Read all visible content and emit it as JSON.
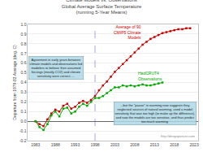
{
  "chart_data": {
    "type": "line",
    "title": "Climate Models vs. Observations\nGlobal Average Surface Temperature\n(running 5-Year Means)",
    "y_label": "Departure from 1979-83 Average (deg. C)",
    "xlim": [
      1981,
      2024
    ],
    "xticks": [
      1983,
      1988,
      1993,
      1998,
      2003,
      2008,
      2013,
      2018,
      2023
    ],
    "ylim": [
      -0.2,
      1.0
    ],
    "yticks": [
      -0.2,
      -0.1,
      {
        "value": 0.0,
        "label": "0.0"
      },
      0.1,
      0.2,
      0.3,
      0.4,
      0.5,
      0.6,
      0.7,
      0.8,
      0.9,
      {
        "value": 1.0,
        "label": "1.0"
      }
    ],
    "grid": true,
    "vline_x": 1998,
    "series": [
      {
        "name": "Average of 90\nCMIP5 Climate\nModels",
        "color": "#cc0000",
        "marker": "square",
        "x": [
          1983,
          1984,
          1985,
          1986,
          1987,
          1988,
          1989,
          1990,
          1991,
          1992,
          1993,
          1994,
          1995,
          1996,
          1997,
          1998,
          1999,
          2000,
          2001,
          2002,
          2003,
          2004,
          2005,
          2006,
          2007,
          2008,
          2009,
          2010,
          2011,
          2012,
          2013,
          2014,
          2015,
          2016,
          2017,
          2018,
          2019,
          2020,
          2021,
          2022
        ],
        "values": [
          0.0,
          -0.03,
          -0.05,
          0.02,
          0.08,
          0.12,
          0.1,
          0.16,
          0.18,
          0.13,
          0.15,
          0.19,
          0.21,
          0.19,
          0.22,
          0.26,
          0.32,
          0.37,
          0.41,
          0.46,
          0.51,
          0.55,
          0.59,
          0.63,
          0.67,
          0.71,
          0.75,
          0.79,
          0.82,
          0.85,
          0.87,
          0.89,
          0.91,
          0.92,
          0.93,
          0.94,
          0.95,
          0.95,
          0.96,
          0.96
        ]
      },
      {
        "name": "HadCRUT4\nObservations",
        "color": "#00aa00",
        "marker": "square",
        "x": [
          1983,
          1984,
          1985,
          1986,
          1987,
          1988,
          1989,
          1990,
          1991,
          1992,
          1993,
          1994,
          1995,
          1996,
          1997,
          1998,
          1999,
          2000,
          2001,
          2002,
          2003,
          2004,
          2005,
          2006,
          2007,
          2008,
          2009,
          2010,
          2011,
          2012,
          2013,
          2014,
          2015
        ],
        "values": [
          0.0,
          -0.06,
          -0.09,
          -0.03,
          0.06,
          0.1,
          0.05,
          0.13,
          0.14,
          0.08,
          0.1,
          0.15,
          0.18,
          0.16,
          0.2,
          0.24,
          0.24,
          0.26,
          0.29,
          0.32,
          0.35,
          0.35,
          0.37,
          0.36,
          0.37,
          0.36,
          0.37,
          0.38,
          0.37,
          0.37,
          0.38,
          0.39,
          0.4
        ]
      }
    ],
    "annotations": [
      "Agreement in early years between\nclimate models and observations led\nmodelers to believe their assumed\nforcings (mostly CO2) and climate\nsensitivity were correct.....",
      "...but the \"pause\" in warming now suggests they\nneglected sources of natural warming, used a model\nsensitivity that was too high (to make up the difference),\nand now the models are too sensitive, and thus predict\ntoo much warming.",
      "http://drroyspencer.com"
    ]
  }
}
